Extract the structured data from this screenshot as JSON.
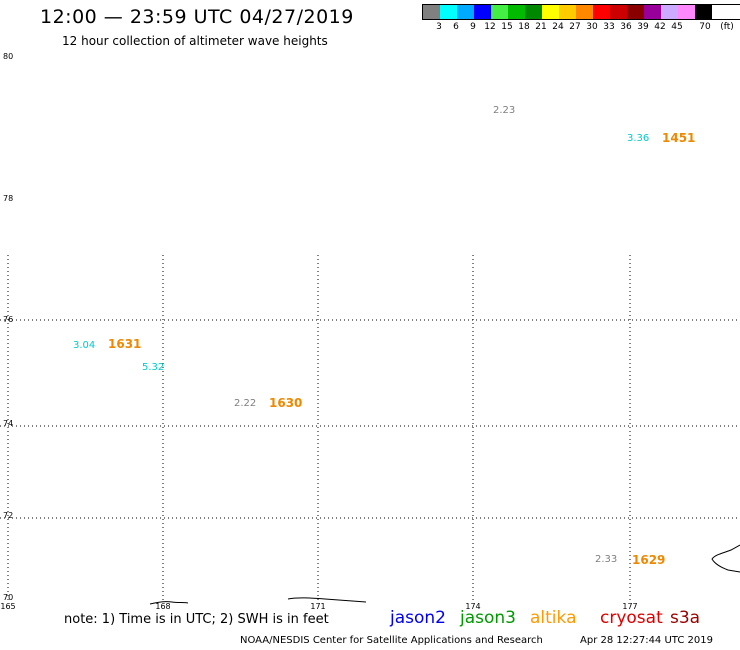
{
  "header": {
    "title": "12:00 — 23:59 UTC 04/27/2019",
    "subtitle": "12 hour collection of altimeter wave heights"
  },
  "color_scale": {
    "colors": [
      "#808080",
      "#00ffff",
      "#00aaff",
      "#0000ff",
      "#44ee44",
      "#00bb00",
      "#008800",
      "#ffff00",
      "#ffcc00",
      "#ff8800",
      "#ff0000",
      "#cc0000",
      "#880000",
      "#990099",
      "#ccaaff",
      "#ff88ff",
      "#000000"
    ],
    "labels": [
      "3",
      "6",
      "9",
      "12",
      "15",
      "18",
      "21",
      "24",
      "27",
      "30",
      "33",
      "36",
      "39",
      "42",
      "45",
      "70",
      "(ft)"
    ]
  },
  "axes": {
    "lat_labels": [
      "80",
      "78",
      "76",
      "74",
      "72",
      "70"
    ],
    "lon_labels": [
      "165",
      "168",
      "171",
      "174",
      "177"
    ]
  },
  "observations": [
    {
      "swh": "2.23",
      "color": "#808080"
    },
    {
      "swh": "3.36",
      "time": "1451",
      "color": "#00cccc",
      "time_color": "#ee8800"
    },
    {
      "swh": "3.04",
      "time": "1631",
      "color": "#00cccc",
      "time_color": "#ee8800"
    },
    {
      "swh": "5.32",
      "color": "#00cccc"
    },
    {
      "swh": "2.22",
      "time": "1630",
      "color": "#808080",
      "time_color": "#ee8800"
    },
    {
      "swh": "2.33",
      "time": "1629",
      "color": "#808080",
      "time_color": "#ee8800"
    }
  ],
  "footer": {
    "note": "note: 1) Time is in UTC; 2) SWH is in feet",
    "legend": [
      {
        "name": "jason2",
        "color": "#0000ee"
      },
      {
        "name": "jason3",
        "color": "#009900"
      },
      {
        "name": "altika",
        "color": "#ff9900"
      },
      {
        "name": "cryosat",
        "color": "#dd0000"
      },
      {
        "name": "s3a",
        "color": "#990000"
      }
    ],
    "credit": "NOAA/NESDIS Center for Satellite Applications and Research",
    "timestamp": "Apr 28 12:27:44 UTC 2019"
  }
}
